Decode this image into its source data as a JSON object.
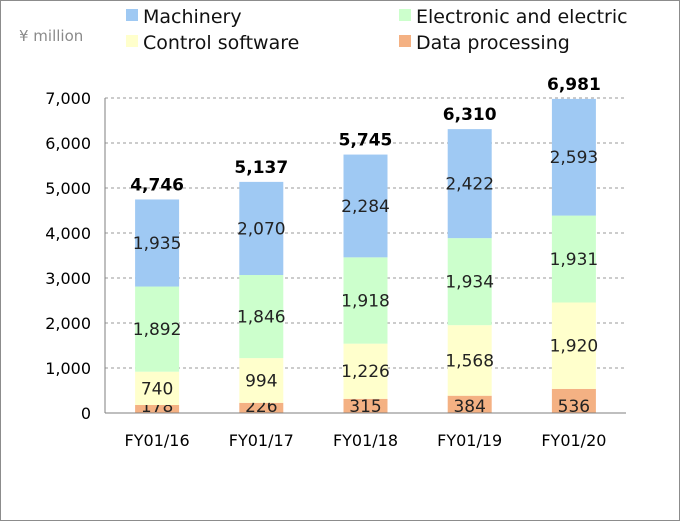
{
  "chart_data": {
    "type": "bar",
    "stacked": true,
    "unit_label": "¥ million",
    "title": "",
    "xlabel": "",
    "ylabel": "",
    "ylim": [
      0,
      7000
    ],
    "yticks": [
      "0",
      "1,000",
      "2,000",
      "3,000",
      "4,000",
      "5,000",
      "6,000",
      "7,000"
    ],
    "grid": true,
    "legend_position": "top",
    "categories": [
      "FY01/16",
      "FY01/17",
      "FY01/18",
      "FY01/19",
      "FY01/20"
    ],
    "series": [
      {
        "name": "Data processing",
        "color": "#f4b183",
        "values": [
          178,
          226,
          315,
          384,
          536
        ],
        "labels": [
          "178",
          "226",
          "315",
          "384",
          "536"
        ]
      },
      {
        "name": "Control software",
        "color": "#ffffcc",
        "values": [
          740,
          994,
          1226,
          1568,
          1920
        ],
        "labels": [
          "740",
          "994",
          "1,226",
          "1,568",
          "1,920"
        ]
      },
      {
        "name": "Electronic and electric",
        "color": "#ccffcc",
        "values": [
          1892,
          1846,
          1918,
          1934,
          1931
        ],
        "labels": [
          "1,892",
          "1,846",
          "1,918",
          "1,934",
          "1,931"
        ]
      },
      {
        "name": "Machinery",
        "color": "#9fc9f3",
        "values": [
          1935,
          2070,
          2284,
          2422,
          2593
        ],
        "labels": [
          "1,935",
          "2,070",
          "2,284",
          "2,422",
          "2,593"
        ]
      }
    ],
    "totals": [
      4746,
      5137,
      5745,
      6310,
      6981
    ],
    "total_labels": [
      "4,746",
      "5,137",
      "5,745",
      "6,310",
      "6,981"
    ]
  }
}
